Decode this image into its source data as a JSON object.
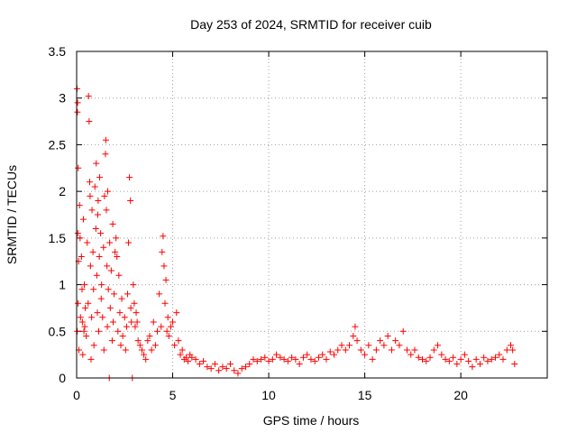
{
  "chart_data": {
    "type": "scatter",
    "title": "Day 253 of 2024, SRMTID for receiver cuib",
    "xlabel": "GPS time / hours",
    "ylabel": "SRMTID / TECUs",
    "xlim": [
      0,
      24.5
    ],
    "ylim": [
      0,
      3.5
    ],
    "xticks": [
      0,
      5,
      10,
      15,
      20
    ],
    "xtick_labels": [
      "0",
      "5",
      "10",
      "15",
      "20"
    ],
    "yticks": [
      0,
      0.5,
      1,
      1.5,
      2,
      2.5,
      3,
      3.5
    ],
    "ytick_labels": [
      "0",
      "0.5",
      "1",
      "1.5",
      "2",
      "2.5",
      "3",
      "3.5"
    ],
    "grid": true,
    "marker": "+",
    "marker_color": "#ff0000",
    "series": [
      {
        "name": "SRMTID",
        "points": [
          [
            0.02,
            3.1
          ],
          [
            0.05,
            2.95
          ],
          [
            0.04,
            2.85
          ],
          [
            0.08,
            2.25
          ],
          [
            0.06,
            1.55
          ],
          [
            0.1,
            1.25
          ],
          [
            0.03,
            0.5
          ],
          [
            0.07,
            0.8
          ],
          [
            0.12,
            0.3
          ],
          [
            0.15,
            1.85
          ],
          [
            0.18,
            1.5
          ],
          [
            0.2,
            0.65
          ],
          [
            0.25,
            1.3
          ],
          [
            0.28,
            0.95
          ],
          [
            0.3,
            0.6
          ],
          [
            0.32,
            0.25
          ],
          [
            0.35,
            1.7
          ],
          [
            0.38,
            0.5
          ],
          [
            0.4,
            1.0
          ],
          [
            0.42,
            0.55
          ],
          [
            0.45,
            0.75
          ],
          [
            0.5,
            0.45
          ],
          [
            0.55,
            1.45
          ],
          [
            0.6,
            0.8
          ],
          [
            0.62,
            3.02
          ],
          [
            0.65,
            2.75
          ],
          [
            0.68,
            2.1
          ],
          [
            0.7,
            1.95
          ],
          [
            0.72,
            1.2
          ],
          [
            0.75,
            0.2
          ],
          [
            0.78,
            0.65
          ],
          [
            0.8,
            1.8
          ],
          [
            0.85,
            1.35
          ],
          [
            0.88,
            0.95
          ],
          [
            0.9,
            0.35
          ],
          [
            0.95,
            2.05
          ],
          [
            1.0,
            1.6
          ],
          [
            1.02,
            2.3
          ],
          [
            1.05,
            1.1
          ],
          [
            1.08,
            0.7
          ],
          [
            1.1,
            1.75
          ],
          [
            1.12,
            1.9
          ],
          [
            1.15,
            0.5
          ],
          [
            1.18,
            1.3
          ],
          [
            1.2,
            2.15
          ],
          [
            1.25,
            1.55
          ],
          [
            1.28,
            0.85
          ],
          [
            1.3,
            1.0
          ],
          [
            1.35,
            0.65
          ],
          [
            1.4,
            1.4
          ],
          [
            1.42,
            0.3
          ],
          [
            1.45,
            1.95
          ],
          [
            1.5,
            2.4
          ],
          [
            1.52,
            2.55
          ],
          [
            1.55,
            1.8
          ],
          [
            1.58,
            1.2
          ],
          [
            1.6,
            0.55
          ],
          [
            1.62,
            2.0
          ],
          [
            1.65,
            0.95
          ],
          [
            1.7,
            0.0
          ],
          [
            1.72,
            1.45
          ],
          [
            1.75,
            0.75
          ],
          [
            1.8,
            1.15
          ],
          [
            1.85,
            0.4
          ],
          [
            1.88,
            1.65
          ],
          [
            1.9,
            0.6
          ],
          [
            1.95,
            0.9
          ],
          [
            2.0,
            1.35
          ],
          [
            2.05,
            1.5
          ],
          [
            2.1,
            1.3
          ],
          [
            2.15,
            0.5
          ],
          [
            2.2,
            1.1
          ],
          [
            2.25,
            0.7
          ],
          [
            2.3,
            0.35
          ],
          [
            2.35,
            0.85
          ],
          [
            2.4,
            0.45
          ],
          [
            2.5,
            0.65
          ],
          [
            2.55,
            0.3
          ],
          [
            2.6,
            0.55
          ],
          [
            2.65,
            0.9
          ],
          [
            2.7,
            1.45
          ],
          [
            2.75,
            2.15
          ],
          [
            2.8,
            1.9
          ],
          [
            2.82,
            0.75
          ],
          [
            2.85,
            0.6
          ],
          [
            2.9,
            0.0
          ],
          [
            2.95,
            1.0
          ],
          [
            3.0,
            0.8
          ],
          [
            3.05,
            0.55
          ],
          [
            3.1,
            0.7
          ],
          [
            3.15,
            0.6
          ],
          [
            3.2,
            0.4
          ],
          [
            3.3,
            0.35
          ],
          [
            3.4,
            0.3
          ],
          [
            3.5,
            0.25
          ],
          [
            3.6,
            0.2
          ],
          [
            3.7,
            0.4
          ],
          [
            3.8,
            0.45
          ],
          [
            3.9,
            0.3
          ],
          [
            4.0,
            0.6
          ],
          [
            4.1,
            0.35
          ],
          [
            4.2,
            0.5
          ],
          [
            4.3,
            0.9
          ],
          [
            4.4,
            0.55
          ],
          [
            4.45,
            1.35
          ],
          [
            4.5,
            1.52
          ],
          [
            4.55,
            1.2
          ],
          [
            4.6,
            0.8
          ],
          [
            4.65,
            1.05
          ],
          [
            4.7,
            0.5
          ],
          [
            4.75,
            0.65
          ],
          [
            4.8,
            0.45
          ],
          [
            4.9,
            0.55
          ],
          [
            5.0,
            0.6
          ],
          [
            5.1,
            0.35
          ],
          [
            5.2,
            0.7
          ],
          [
            5.3,
            0.4
          ],
          [
            5.4,
            0.25
          ],
          [
            5.5,
            0.3
          ],
          [
            5.6,
            0.2
          ],
          [
            5.7,
            0.22
          ],
          [
            5.8,
            0.18
          ],
          [
            5.9,
            0.25
          ],
          [
            6.0,
            0.22
          ],
          [
            6.2,
            0.2
          ],
          [
            6.4,
            0.15
          ],
          [
            6.6,
            0.18
          ],
          [
            6.8,
            0.12
          ],
          [
            7.0,
            0.1
          ],
          [
            7.2,
            0.15
          ],
          [
            7.4,
            0.08
          ],
          [
            7.6,
            0.12
          ],
          [
            7.8,
            0.1
          ],
          [
            8.0,
            0.15
          ],
          [
            8.2,
            0.08
          ],
          [
            8.4,
            0.05
          ],
          [
            8.6,
            0.1
          ],
          [
            8.8,
            0.12
          ],
          [
            9.0,
            0.15
          ],
          [
            9.2,
            0.2
          ],
          [
            9.4,
            0.18
          ],
          [
            9.6,
            0.2
          ],
          [
            9.8,
            0.22
          ],
          [
            10.0,
            0.18
          ],
          [
            10.2,
            0.2
          ],
          [
            10.4,
            0.25
          ],
          [
            10.6,
            0.22
          ],
          [
            10.8,
            0.2
          ],
          [
            11.0,
            0.18
          ],
          [
            11.2,
            0.22
          ],
          [
            11.4,
            0.2
          ],
          [
            11.6,
            0.15
          ],
          [
            11.8,
            0.22
          ],
          [
            12.0,
            0.25
          ],
          [
            12.2,
            0.2
          ],
          [
            12.4,
            0.18
          ],
          [
            12.6,
            0.22
          ],
          [
            12.8,
            0.25
          ],
          [
            13.0,
            0.2
          ],
          [
            13.2,
            0.28
          ],
          [
            13.4,
            0.25
          ],
          [
            13.6,
            0.3
          ],
          [
            13.8,
            0.35
          ],
          [
            14.0,
            0.3
          ],
          [
            14.2,
            0.35
          ],
          [
            14.4,
            0.45
          ],
          [
            14.5,
            0.55
          ],
          [
            14.6,
            0.4
          ],
          [
            14.8,
            0.3
          ],
          [
            15.0,
            0.25
          ],
          [
            15.2,
            0.35
          ],
          [
            15.4,
            0.2
          ],
          [
            15.6,
            0.3
          ],
          [
            15.8,
            0.4
          ],
          [
            16.0,
            0.35
          ],
          [
            16.2,
            0.45
          ],
          [
            16.4,
            0.3
          ],
          [
            16.6,
            0.4
          ],
          [
            16.8,
            0.35
          ],
          [
            17.0,
            0.5
          ],
          [
            17.2,
            0.3
          ],
          [
            17.4,
            0.25
          ],
          [
            17.6,
            0.3
          ],
          [
            17.8,
            0.22
          ],
          [
            18.0,
            0.2
          ],
          [
            18.2,
            0.18
          ],
          [
            18.4,
            0.22
          ],
          [
            18.6,
            0.3
          ],
          [
            18.8,
            0.35
          ],
          [
            19.0,
            0.25
          ],
          [
            19.2,
            0.2
          ],
          [
            19.4,
            0.18
          ],
          [
            19.6,
            0.22
          ],
          [
            19.8,
            0.15
          ],
          [
            20.0,
            0.2
          ],
          [
            20.2,
            0.25
          ],
          [
            20.4,
            0.18
          ],
          [
            20.6,
            0.12
          ],
          [
            20.8,
            0.2
          ],
          [
            21.0,
            0.15
          ],
          [
            21.2,
            0.22
          ],
          [
            21.4,
            0.18
          ],
          [
            21.6,
            0.2
          ],
          [
            21.8,
            0.22
          ],
          [
            22.0,
            0.25
          ],
          [
            22.2,
            0.2
          ],
          [
            22.4,
            0.3
          ],
          [
            22.6,
            0.35
          ],
          [
            22.7,
            0.3
          ],
          [
            22.8,
            0.15
          ]
        ]
      }
    ]
  }
}
